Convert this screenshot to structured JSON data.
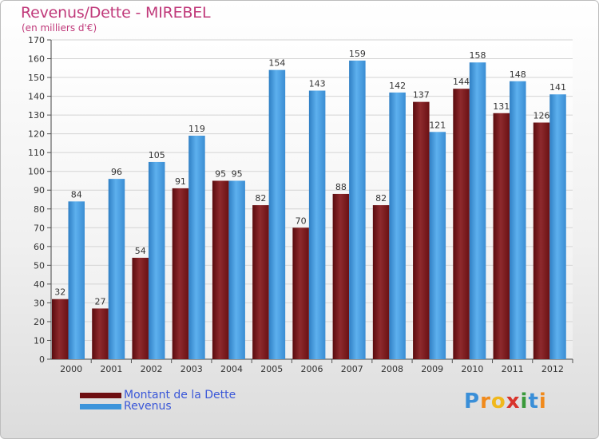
{
  "header": {
    "title": "Revenus/Dette - MIREBEL",
    "subtitle": "(en milliers d'€)"
  },
  "chart_data": {
    "type": "bar",
    "title": "Revenus/Dette - MIREBEL",
    "subtitle": "(en milliers d'€)",
    "categories": [
      "2000",
      "2001",
      "2002",
      "2003",
      "2004",
      "2005",
      "2006",
      "2007",
      "2008",
      "2009",
      "2010",
      "2011",
      "2012"
    ],
    "series": [
      {
        "name": "Montant de la Dette",
        "color": "#7a1416",
        "values": [
          32,
          27,
          54,
          91,
          95,
          82,
          70,
          88,
          82,
          137,
          144,
          131,
          126
        ]
      },
      {
        "name": "Revenus",
        "color": "#3d95db",
        "values": [
          84,
          96,
          105,
          119,
          95,
          154,
          143,
          159,
          142,
          121,
          158,
          148,
          141
        ]
      }
    ],
    "ylim": [
      0,
      170
    ],
    "yticks": [
      0,
      10,
      20,
      30,
      40,
      50,
      60,
      70,
      80,
      90,
      100,
      110,
      120,
      130,
      140,
      150,
      160,
      170
    ],
    "grid": true,
    "legend_position": "bottom-left"
  },
  "legend": {
    "items": [
      {
        "label": "Montant de la Dette",
        "color": "#6e0f12"
      },
      {
        "label": "Revenus",
        "color": "#3d95db"
      }
    ]
  },
  "logo": {
    "letters": [
      {
        "char": "P",
        "color": "#3a8fd8"
      },
      {
        "char": "r",
        "color": "#f08a1c"
      },
      {
        "char": "o",
        "color": "#f0b81c"
      },
      {
        "char": "x",
        "color": "#d8342c"
      },
      {
        "char": "i",
        "color": "#3a9a3a"
      },
      {
        "char": "t",
        "color": "#3a8fd8"
      },
      {
        "char": "i",
        "color": "#f08a1c"
      }
    ]
  }
}
